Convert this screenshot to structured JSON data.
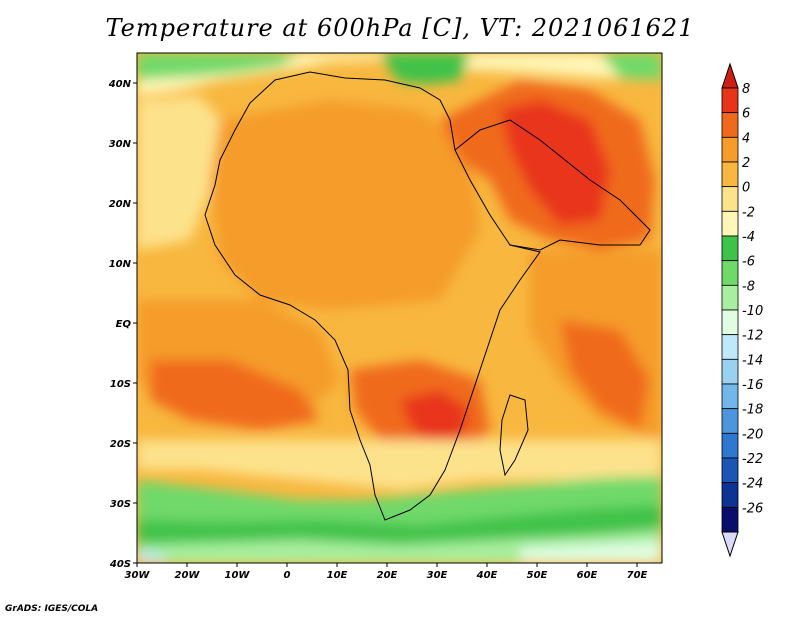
{
  "title": "Temperature at 600hPa [C], VT: 2021061621",
  "credit": "GrADS: IGES/COLA",
  "map": {
    "lon_range": [
      -30,
      75
    ],
    "lat_range": [
      -40,
      45
    ],
    "lon_ticks": [
      {
        "value": -30,
        "label": "30W"
      },
      {
        "value": -20,
        "label": "20W"
      },
      {
        "value": -10,
        "label": "10W"
      },
      {
        "value": 0,
        "label": "0"
      },
      {
        "value": 10,
        "label": "10E"
      },
      {
        "value": 20,
        "label": "20E"
      },
      {
        "value": 30,
        "label": "30E"
      },
      {
        "value": 40,
        "label": "40E"
      },
      {
        "value": 50,
        "label": "50E"
      },
      {
        "value": 60,
        "label": "60E"
      },
      {
        "value": 70,
        "label": "70E"
      }
    ],
    "lat_ticks": [
      {
        "value": 40,
        "label": "40N"
      },
      {
        "value": 30,
        "label": "30N"
      },
      {
        "value": 20,
        "label": "20N"
      },
      {
        "value": 10,
        "label": "10N"
      },
      {
        "value": 0,
        "label": "EQ"
      },
      {
        "value": -10,
        "label": "10S"
      },
      {
        "value": -20,
        "label": "20S"
      },
      {
        "value": -30,
        "label": "30S"
      },
      {
        "value": -40,
        "label": "40S"
      }
    ]
  },
  "colorbar": {
    "labels": [
      "8",
      "6",
      "4",
      "2",
      "0",
      "-2",
      "-4",
      "-6",
      "-8",
      "-10",
      "-12",
      "-14",
      "-16",
      "-18",
      "-20",
      "-22",
      "-24",
      "-26"
    ],
    "colors": [
      "#e8341a",
      "#f06a1e",
      "#f59c2a",
      "#f8b73f",
      "#fde28c",
      "#fef7b8",
      "#3fc24a",
      "#6fd96a",
      "#a7ef9e",
      "#e0fde4",
      "#bfe8f8",
      "#9ad0f0",
      "#72b6ea",
      "#4d96dd",
      "#2f77cf",
      "#1c56b4",
      "#0d3394",
      "#080f6a"
    ],
    "top_arrow_color": "#cc1e12",
    "bottom_arrow_color": "#dcd8fa"
  }
}
